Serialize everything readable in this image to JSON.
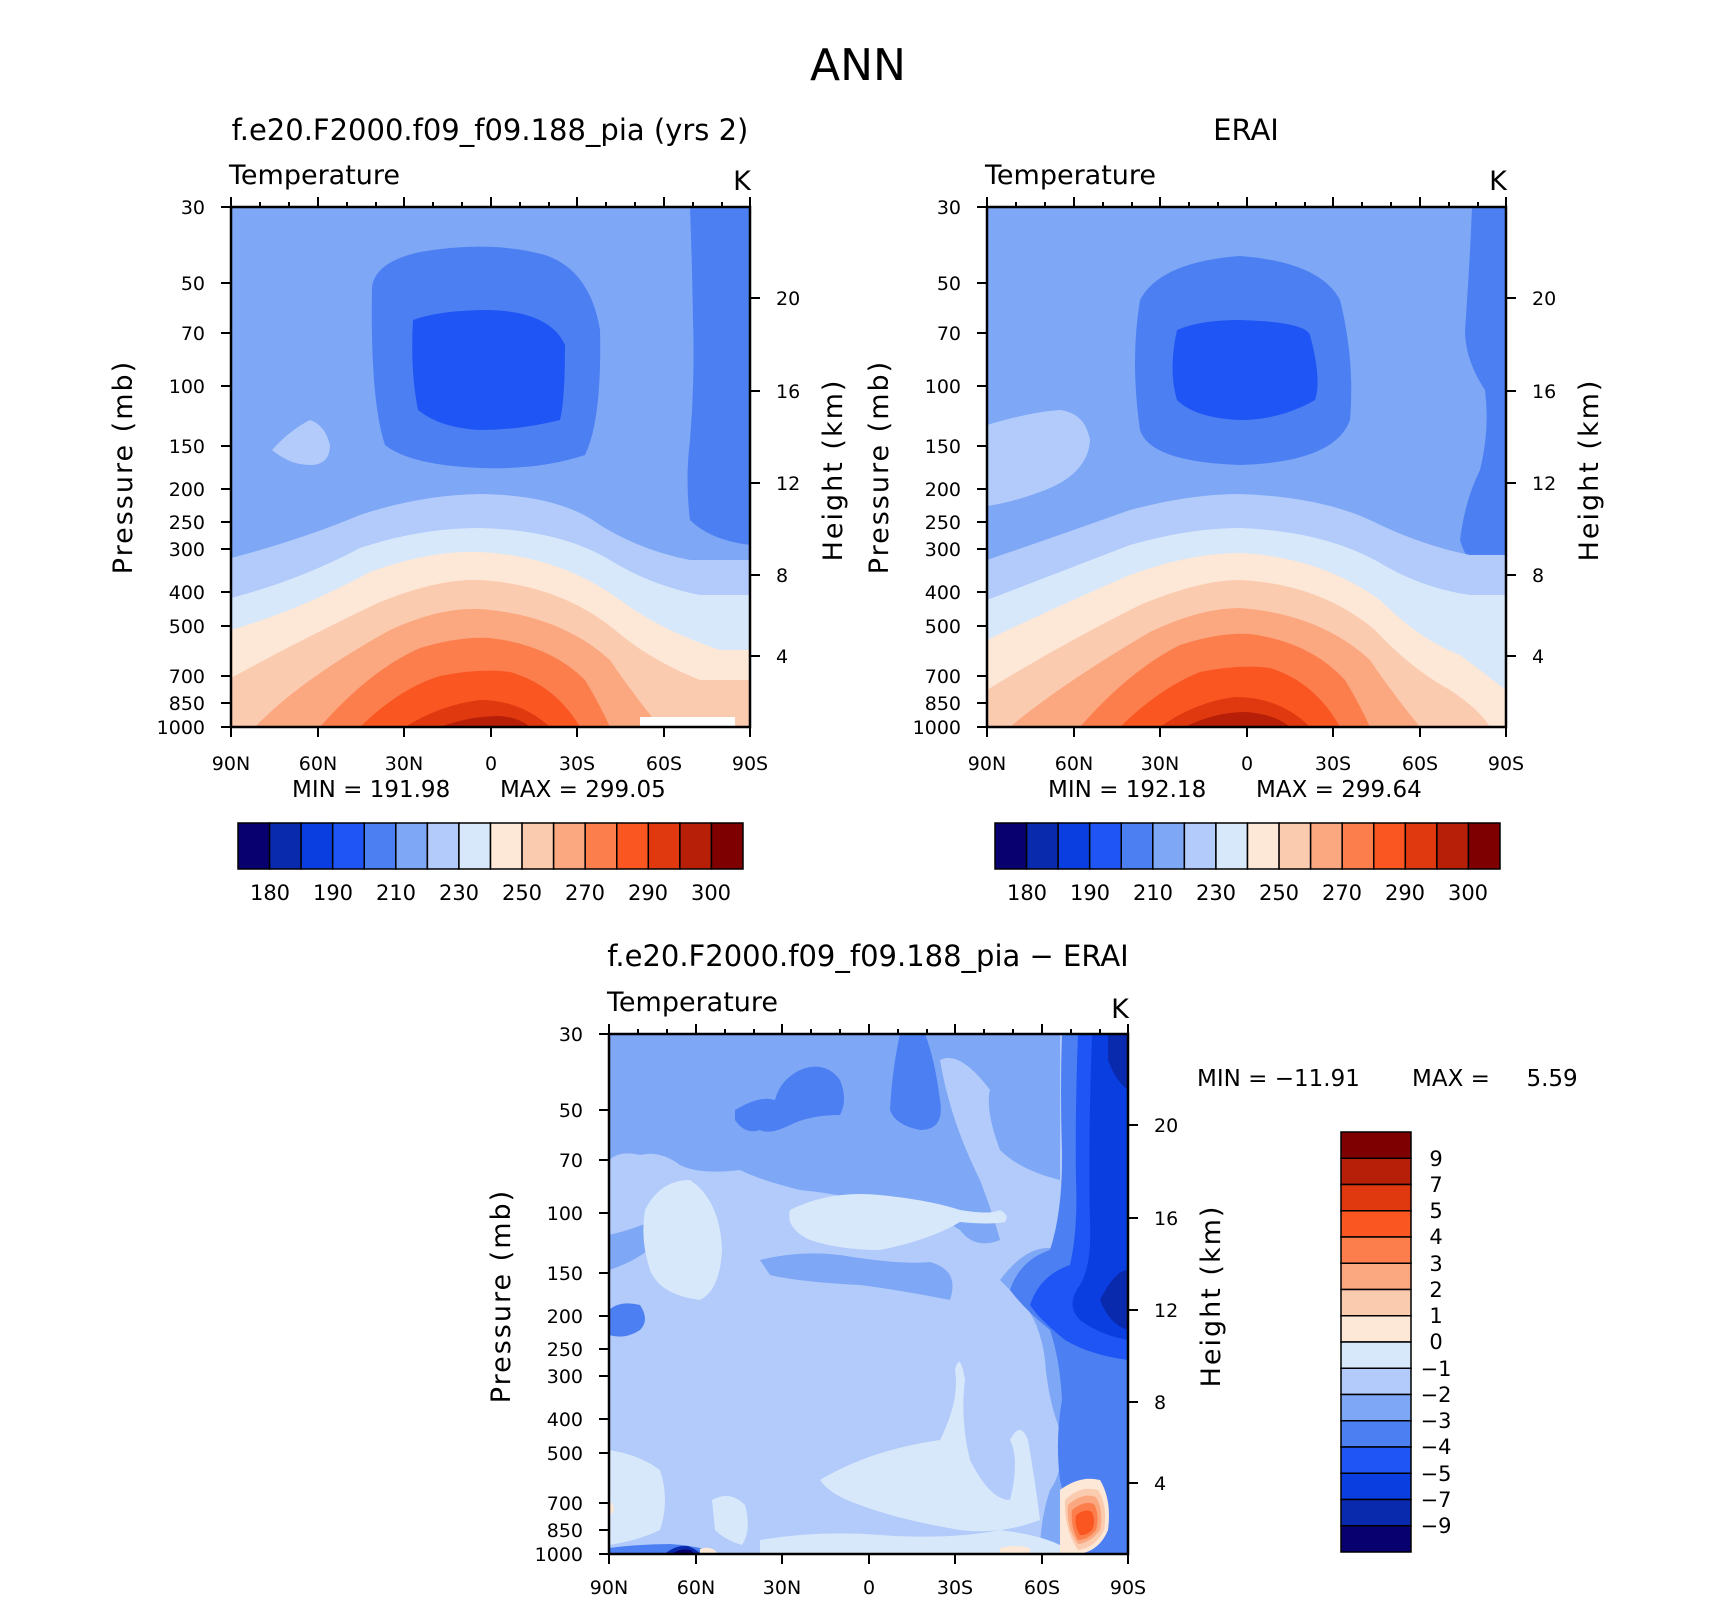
{
  "figure": {
    "title": "ANN"
  },
  "chart_data": [
    {
      "type": "heatmap",
      "id": "panel-model",
      "title": "f.e20.F2000.f09_f09.188_pia (yrs 2)",
      "variable": "Temperature",
      "units": "K",
      "xlabel": "",
      "ylabel": "Pressure (mb)",
      "y2label": "Height (km)",
      "xticks": [
        "90N",
        "60N",
        "30N",
        "0",
        "30S",
        "60S",
        "90S"
      ],
      "yticks": [
        30,
        50,
        70,
        100,
        150,
        200,
        250,
        300,
        400,
        500,
        700,
        850,
        1000
      ],
      "y2ticks": [
        4,
        8,
        12,
        16,
        20
      ],
      "min_text": "MIN = 191.98",
      "max_text": "MAX = 299.05",
      "min": 191.98,
      "max": 299.05,
      "colorbar_labels": [
        "180",
        "190",
        "210",
        "230",
        "250",
        "270",
        "290",
        "300"
      ]
    },
    {
      "type": "heatmap",
      "id": "panel-obs",
      "title": "ERAI",
      "variable": "Temperature",
      "units": "K",
      "xlabel": "",
      "ylabel": "Pressure (mb)",
      "y2label": "Height (km)",
      "xticks": [
        "90N",
        "60N",
        "30N",
        "0",
        "30S",
        "60S",
        "90S"
      ],
      "yticks": [
        30,
        50,
        70,
        100,
        150,
        200,
        250,
        300,
        400,
        500,
        700,
        850,
        1000
      ],
      "y2ticks": [
        4,
        8,
        12,
        16,
        20
      ],
      "min_text": "MIN = 192.18",
      "max_text": "MAX = 299.64",
      "min": 192.18,
      "max": 299.64,
      "colorbar_labels": [
        "180",
        "190",
        "210",
        "230",
        "250",
        "270",
        "290",
        "300"
      ]
    },
    {
      "type": "heatmap",
      "id": "panel-diff",
      "title": "f.e20.F2000.f09_f09.188_pia − ERAI",
      "variable": "Temperature",
      "units": "K",
      "xlabel": "",
      "ylabel": "Pressure (mb)",
      "y2label": "Height (km)",
      "xticks": [
        "90N",
        "60N",
        "30N",
        "0",
        "30S",
        "60S",
        "90S"
      ],
      "yticks": [
        30,
        50,
        70,
        100,
        150,
        200,
        250,
        300,
        400,
        500,
        700,
        850,
        1000
      ],
      "y2ticks": [
        4,
        8,
        12,
        16,
        20
      ],
      "min_text": "MIN = −11.91",
      "max_text": "MAX =     5.59",
      "min": -11.91,
      "max": 5.59,
      "colorbar_labels": [
        "9",
        "7",
        "5",
        "4",
        "3",
        "2",
        "1",
        "0",
        "−1",
        "−2",
        "−3",
        "−4",
        "−5",
        "−7",
        "−9"
      ]
    }
  ],
  "palettes": {
    "absolute": [
      "#08006e",
      "#0a2aad",
      "#0a3ee0",
      "#1f55f5",
      "#4c7ff2",
      "#7ea7f6",
      "#b2cbfa",
      "#d8e8fb",
      "#fde7d6",
      "#fbcbb0",
      "#fba77f",
      "#fb7e4c",
      "#fa5622",
      "#e0380f",
      "#b81f08",
      "#7f0000"
    ],
    "difference": [
      "#7f0000",
      "#b81f08",
      "#e0380f",
      "#fa5622",
      "#fb7e4c",
      "#fba77f",
      "#fbcbb0",
      "#fde7d6",
      "#d8e8fb",
      "#b2cbfa",
      "#7ea7f6",
      "#4c7ff2",
      "#1f55f5",
      "#0a3ee0",
      "#0a2aad",
      "#08006e"
    ]
  }
}
